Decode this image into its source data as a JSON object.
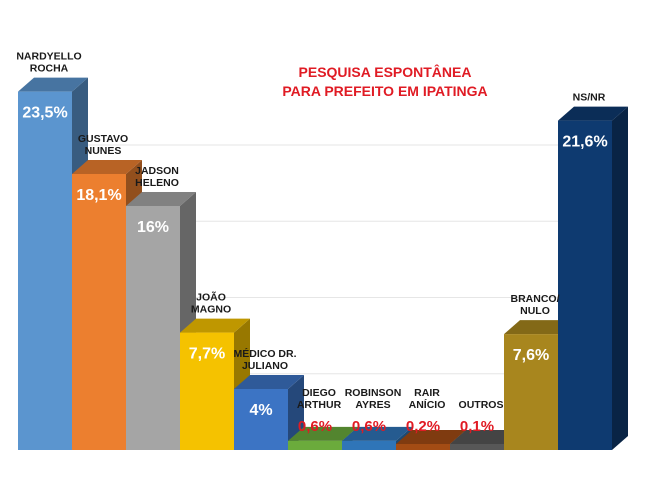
{
  "chart_data": {
    "type": "bar",
    "title_lines": [
      "PESQUISA ESPONTÂNEA",
      "PARA PREFEITO EM IPATINGA"
    ],
    "categories": [
      [
        "NARDYELLO",
        "ROCHA"
      ],
      [
        "GUSTAVO",
        "NUNES"
      ],
      [
        "JADSON",
        "HELENO"
      ],
      [
        "JOÃO",
        "MAGNO"
      ],
      [
        "MÉDICO DR.",
        "JULIANO"
      ],
      [
        "DIEGO",
        "ARTHUR"
      ],
      [
        "ROBINSON",
        "AYRES"
      ],
      [
        "RAIR",
        "ANÍCIO"
      ],
      [
        "OUTROS"
      ],
      [
        "BRANCO/",
        "NULO"
      ],
      [
        "NS/NR"
      ]
    ],
    "values": [
      23.5,
      18.1,
      16,
      7.7,
      4,
      0.6,
      0.6,
      0.2,
      0.1,
      7.6,
      21.6
    ],
    "value_labels": [
      "23,5%",
      "18,1%",
      "16%",
      "7,7%",
      "4%",
      "0,6%",
      "0,6%",
      "0,2%",
      "0,1%",
      "7,6%",
      "21,6%"
    ],
    "colors": [
      "#5b95cf",
      "#ec7f2f",
      "#a5a5a5",
      "#f5c200",
      "#3c74c4",
      "#6bab3c",
      "#2f75b8",
      "#a34c14",
      "#575757",
      "#a8861e",
      "#0e3a70"
    ],
    "ylim": [
      0,
      25
    ],
    "grid": true,
    "legend": "none"
  }
}
